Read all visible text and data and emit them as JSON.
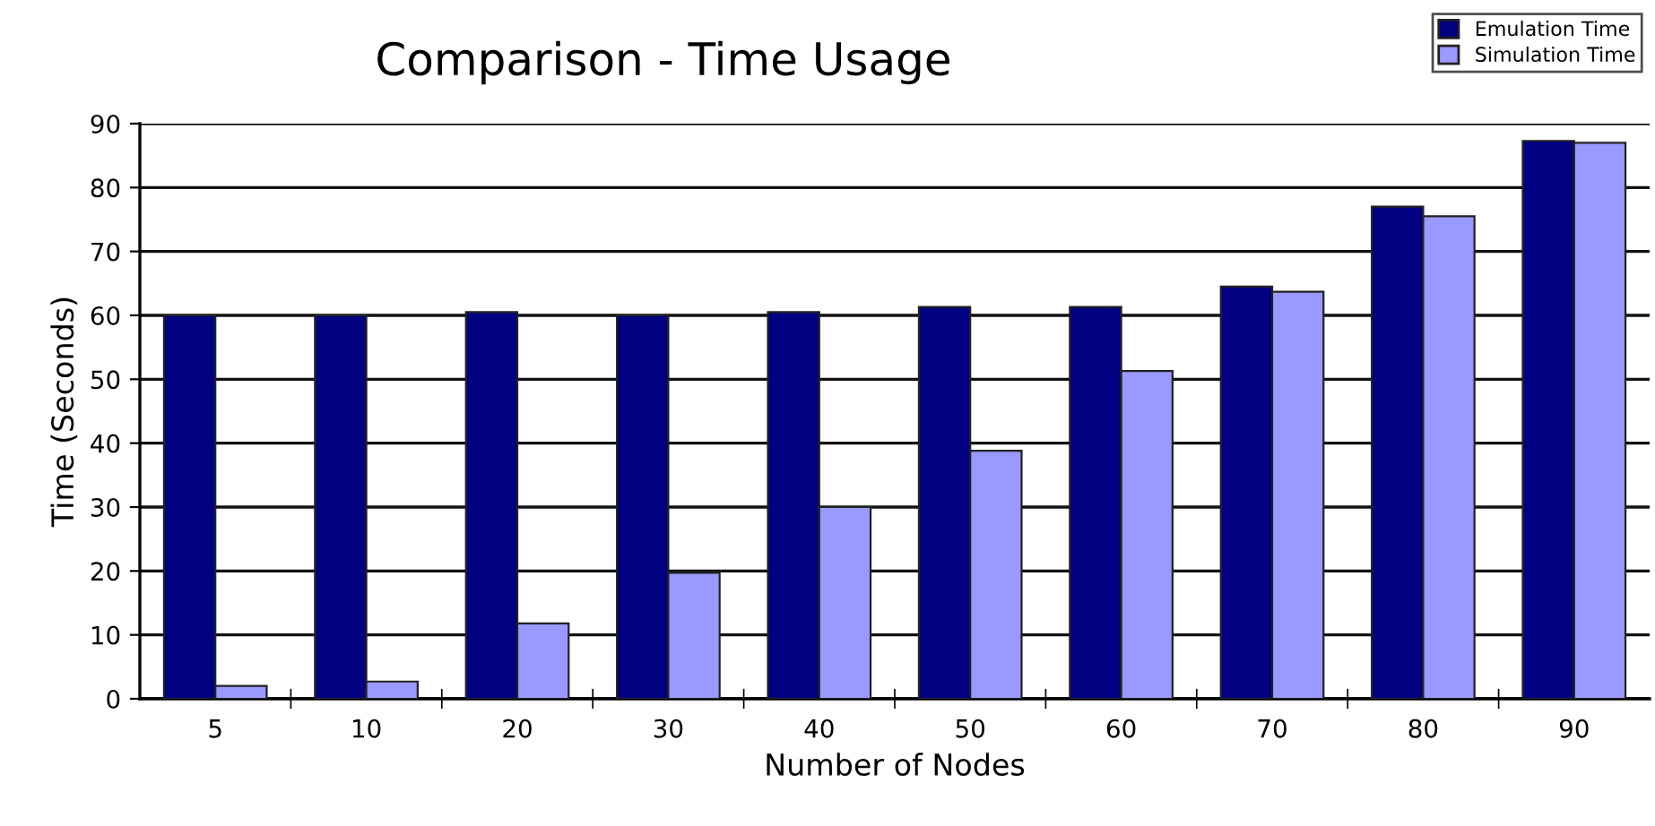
{
  "chart_data": {
    "type": "bar",
    "title": "Comparison - Time Usage",
    "xlabel": "Number of Nodes",
    "ylabel": "Time (Seconds)",
    "categories": [
      "5",
      "10",
      "20",
      "30",
      "40",
      "50",
      "60",
      "70",
      "80",
      "90"
    ],
    "series": [
      {
        "name": "Emulation Time",
        "color": "#000080",
        "values": [
          60,
          60,
          60.5,
          60,
          60.5,
          61.3,
          61.3,
          64.5,
          77,
          87.3
        ]
      },
      {
        "name": "Simulation Time",
        "color": "#9999ff",
        "values": [
          2,
          2.7,
          11.8,
          19.7,
          30,
          38.8,
          51.3,
          63.7,
          75.5,
          87
        ]
      }
    ],
    "ylim": [
      0,
      90
    ],
    "yticks": [
      0,
      10,
      20,
      30,
      40,
      50,
      60,
      70,
      80,
      90
    ],
    "grid": "y",
    "legend": "top right"
  }
}
